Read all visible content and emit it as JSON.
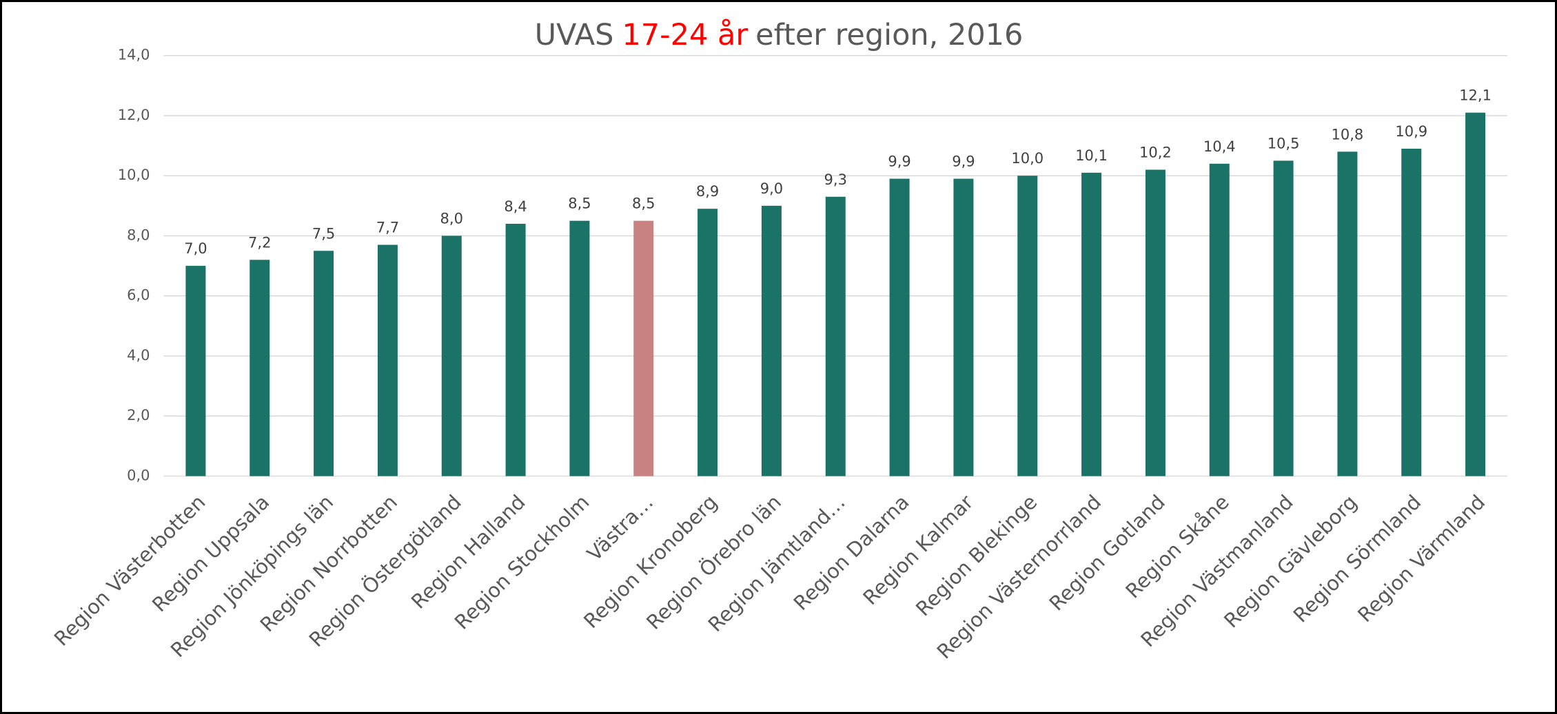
{
  "chart_data": {
    "type": "bar",
    "title": [
      "UVAS",
      "17-24 år",
      "efter region, 2016"
    ],
    "title_colors": [
      "#595959",
      "#ff0000",
      "#595959"
    ],
    "categories": [
      "Region Västerbotten",
      "Region Uppsala",
      "Region Jönköpings län",
      "Region Norrbotten",
      "Region Östergötland",
      "Region Halland",
      "Region Stockholm",
      "Västra…",
      "Region Kronoberg",
      "Region Örebro län",
      "Region Jämtland…",
      "Region Dalarna",
      "Region Kalmar",
      "Region Blekinge",
      "Region Västernorrland",
      "Region Gotland",
      "Region Skåne",
      "Region Västmanland",
      "Region Gävleborg",
      "Region Sörmland",
      "Region Värmland"
    ],
    "values": [
      7.0,
      7.2,
      7.5,
      7.7,
      8.0,
      8.4,
      8.5,
      8.5,
      8.9,
      9.0,
      9.3,
      9.9,
      9.9,
      10.0,
      10.1,
      10.2,
      10.4,
      10.5,
      10.8,
      10.9,
      12.1
    ],
    "value_labels": [
      "7,0",
      "7,2",
      "7,5",
      "7,7",
      "8,0",
      "8,4",
      "8,5",
      "8,5",
      "8,9",
      "9,0",
      "9,3",
      "9,9",
      "9,9",
      "10,0",
      "10,1",
      "10,2",
      "10,4",
      "10,5",
      "10,8",
      "10,9",
      "12,1"
    ],
    "colors": [
      "#1a7366",
      "#1a7366",
      "#1a7366",
      "#1a7366",
      "#1a7366",
      "#1a7366",
      "#1a7366",
      "#c98282",
      "#1a7366",
      "#1a7366",
      "#1a7366",
      "#1a7366",
      "#1a7366",
      "#1a7366",
      "#1a7366",
      "#1a7366",
      "#1a7366",
      "#1a7366",
      "#1a7366",
      "#1a7366",
      "#1a7366"
    ],
    "ylim": [
      0,
      14
    ],
    "yticks": [
      {
        "value": 0,
        "label": "0,0"
      },
      {
        "value": 2,
        "label": "2,0"
      },
      {
        "value": 4,
        "label": "4,0"
      },
      {
        "value": 6,
        "label": "6,0"
      },
      {
        "value": 8,
        "label": "8,0"
      },
      {
        "value": 10,
        "label": "10,0"
      },
      {
        "value": 12,
        "label": "12,0"
      },
      {
        "value": 14,
        "label": "14,0"
      }
    ],
    "grid": true
  }
}
